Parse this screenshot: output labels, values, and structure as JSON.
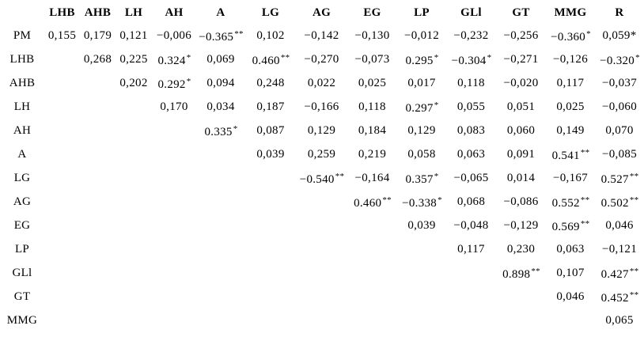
{
  "table": {
    "corner_label": "",
    "columns": [
      "LHB",
      "AHB",
      "LH",
      "AH",
      "A",
      "LG",
      "AG",
      "EG",
      "LP",
      "GLl",
      "GT",
      "MMG",
      "R"
    ],
    "rows": [
      {
        "label": "PM",
        "cells": [
          "0,155",
          "0,179",
          "0,121",
          "−0,006",
          {
            "v": "−0.365",
            "sig": "**"
          },
          "0,102",
          "−0,142",
          "−0,130",
          "−0,012",
          "−0,232",
          "−0,256",
          {
            "v": "−0.360",
            "sig": "*"
          },
          "0,059*"
        ]
      },
      {
        "label": "LHB",
        "cells": [
          null,
          "0,268",
          "0,225",
          {
            "v": "0.324",
            "sig": "*"
          },
          "0,069",
          {
            "v": "0.460",
            "sig": "**"
          },
          "−0,270",
          "−0,073",
          {
            "v": "0.295",
            "sig": "*"
          },
          {
            "v": "−0.304",
            "sig": "*"
          },
          "−0,271",
          "−0,126",
          {
            "v": "−0.320",
            "sig": "*"
          }
        ]
      },
      {
        "label": "AHB",
        "cells": [
          null,
          null,
          "0,202",
          {
            "v": "0.292",
            "sig": "*"
          },
          "0,094",
          "0,248",
          "0,022",
          "0,025",
          "0,017",
          "0,118",
          "−0,020",
          "0,117",
          "−0,037"
        ]
      },
      {
        "label": "LH",
        "cells": [
          null,
          null,
          null,
          "0,170",
          "0,034",
          "0,187",
          "−0,166",
          "0,118",
          {
            "v": "0.297",
            "sig": "*"
          },
          "0,055",
          "0,051",
          "0,025",
          "−0,060"
        ]
      },
      {
        "label": "AH",
        "cells": [
          null,
          null,
          null,
          null,
          {
            "v": "0.335",
            "sig": "*"
          },
          "0,087",
          "0,129",
          "0,184",
          "0,129",
          "0,083",
          "0,060",
          "0,149",
          "0,070"
        ]
      },
      {
        "label": "A",
        "cells": [
          null,
          null,
          null,
          null,
          null,
          "0,039",
          "0,259",
          "0,219",
          "0,058",
          "0,063",
          "0,091",
          {
            "v": "0.541",
            "sig": "**"
          },
          "−0,085"
        ]
      },
      {
        "label": "LG",
        "cells": [
          null,
          null,
          null,
          null,
          null,
          null,
          {
            "v": "−0.540",
            "sig": "**"
          },
          "−0,164",
          {
            "v": "0.357",
            "sig": "*"
          },
          "−0,065",
          "0,014",
          "−0,167",
          {
            "v": "0.527",
            "sig": "**"
          }
        ]
      },
      {
        "label": "AG",
        "cells": [
          null,
          null,
          null,
          null,
          null,
          null,
          null,
          {
            "v": "0.460",
            "sig": "**"
          },
          {
            "v": "−0.338",
            "sig": "*"
          },
          "0,068",
          "−0,086",
          {
            "v": "0.552",
            "sig": "**"
          },
          {
            "v": "0.502",
            "sig": "**"
          }
        ]
      },
      {
        "label": "EG",
        "cells": [
          null,
          null,
          null,
          null,
          null,
          null,
          null,
          null,
          "0,039",
          "−0,048",
          "−0,129",
          {
            "v": "0.569",
            "sig": "**"
          },
          "0,046"
        ]
      },
      {
        "label": "LP",
        "cells": [
          null,
          null,
          null,
          null,
          null,
          null,
          null,
          null,
          null,
          "0,117",
          "0,230",
          "0,063",
          "−0,121"
        ]
      },
      {
        "label": "GLl",
        "cells": [
          null,
          null,
          null,
          null,
          null,
          null,
          null,
          null,
          null,
          null,
          {
            "v": "0.898",
            "sig": "**"
          },
          "0,107",
          {
            "v": "0.427",
            "sig": "**"
          }
        ]
      },
      {
        "label": "GT",
        "cells": [
          null,
          null,
          null,
          null,
          null,
          null,
          null,
          null,
          null,
          null,
          null,
          "0,046",
          {
            "v": "0.452",
            "sig": "**"
          }
        ]
      },
      {
        "label": "MMG",
        "cells": [
          null,
          null,
          null,
          null,
          null,
          null,
          null,
          null,
          null,
          null,
          null,
          null,
          "0,065"
        ]
      }
    ],
    "text_color": "#000000",
    "background_color": "#ffffff"
  }
}
